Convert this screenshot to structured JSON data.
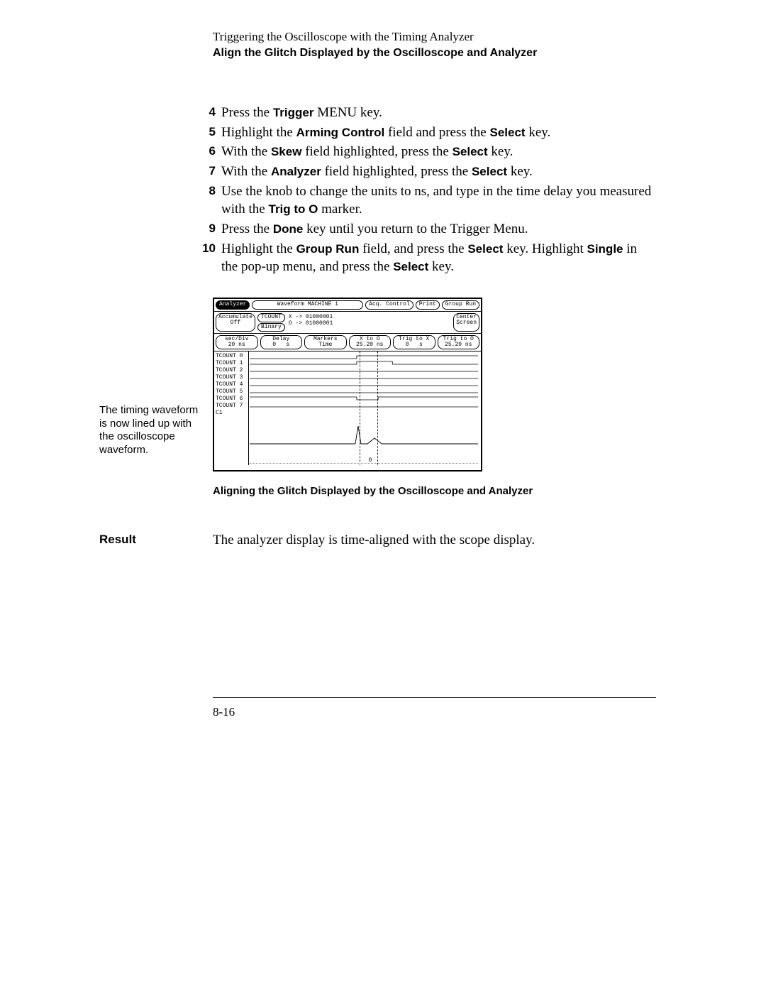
{
  "header": {
    "line1": "Triggering the Oscilloscope with the Timing Analyzer",
    "line2": "Align the Glitch Displayed by the Oscilloscope and Analyzer"
  },
  "steps": [
    {
      "num": "4",
      "parts": [
        {
          "t": "Press the "
        },
        {
          "t": "Trigger",
          "b": true
        },
        {
          "t": " MENU key."
        }
      ]
    },
    {
      "num": "5",
      "parts": [
        {
          "t": "Highlight the "
        },
        {
          "t": "Arming Control",
          "b": true
        },
        {
          "t": " field and press the "
        },
        {
          "t": "Select",
          "b": true
        },
        {
          "t": " key."
        }
      ]
    },
    {
      "num": "6",
      "parts": [
        {
          "t": "With the "
        },
        {
          "t": "Skew",
          "b": true
        },
        {
          "t": " field highlighted, press the "
        },
        {
          "t": "Select",
          "b": true
        },
        {
          "t": " key."
        }
      ]
    },
    {
      "num": "7",
      "parts": [
        {
          "t": "With the "
        },
        {
          "t": "Analyzer",
          "b": true
        },
        {
          "t": " field highlighted, press the "
        },
        {
          "t": "Select",
          "b": true
        },
        {
          "t": " key."
        }
      ]
    },
    {
      "num": "8",
      "parts": [
        {
          "t": "Use the knob to change the units to ns, and type in the time delay you measured with the "
        },
        {
          "t": "Trig to O",
          "b": true
        },
        {
          "t": " marker."
        }
      ]
    },
    {
      "num": "9",
      "parts": [
        {
          "t": "Press the "
        },
        {
          "t": "Done",
          "b": true
        },
        {
          "t": " key until you return to the Trigger Menu."
        }
      ]
    },
    {
      "num": "10",
      "parts": [
        {
          "t": "Highlight the "
        },
        {
          "t": "Group Run",
          "b": true
        },
        {
          "t": " field, and press the "
        },
        {
          "t": "Select",
          "b": true
        },
        {
          "t": " key.  Highlight "
        },
        {
          "t": "Single",
          "b": true
        },
        {
          "t": " in the pop-up menu, and press the "
        },
        {
          "t": "Select",
          "b": true
        },
        {
          "t": " key."
        }
      ]
    }
  ],
  "figure": {
    "left_caption": "The timing  waveform is now lined up with the oscilloscope waveform.",
    "title": "Aligning the Glitch Displayed by the Oscilloscope and Analyzer",
    "screen": {
      "top_row": {
        "analyzer": "Analyzer",
        "machine": "Waveform MACHINE 1",
        "acq": "Acq. Control",
        "print": "Print",
        "group_run": "Group Run"
      },
      "row2": {
        "accumulate": "Accumulate\nOff",
        "tcount": "TCOUNT",
        "binary": "Binary",
        "x_arrow": "X -> 01000001",
        "o_arrow": "O -> 01000001",
        "center": "Center\nScreen"
      },
      "row3": {
        "secdiv": "sec/Div\n20 ns",
        "delay": "Delay\n0   s",
        "markers": "Markers\nTime",
        "xto": "X to O\n25.20 ns",
        "trigx": "Trig to X\n0   s",
        "trigo": "Trig to O\n25.20 ns"
      },
      "channels": [
        "TCOUNT 0",
        "TCOUNT 1",
        "TCOUNT 2",
        "TCOUNT 3",
        "TCOUNT 4",
        "TCOUNT 5",
        "TCOUNT 6",
        "TCOUNT 7",
        "C1"
      ],
      "markers": {
        "x_pos_pct": 48,
        "o_pos_pct": 56
      },
      "time_label": "0",
      "colors": {
        "bg": "#ffffff",
        "fg": "#000000"
      }
    }
  },
  "result": {
    "label": "Result",
    "text": "The analyzer display is time-aligned with the scope display."
  },
  "footer": {
    "page": "8-16"
  }
}
